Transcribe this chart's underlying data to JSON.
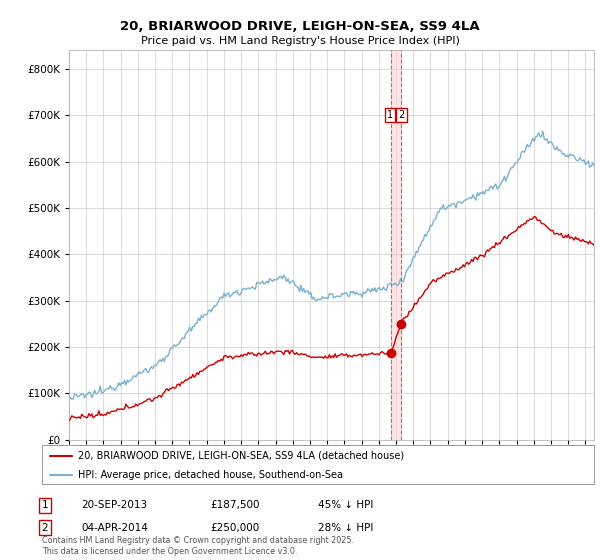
{
  "title": "20, BRIARWOOD DRIVE, LEIGH-ON-SEA, SS9 4LA",
  "subtitle": "Price paid vs. HM Land Registry's House Price Index (HPI)",
  "line1_label": "20, BRIARWOOD DRIVE, LEIGH-ON-SEA, SS9 4LA (detached house)",
  "line2_label": "HPI: Average price, detached house, Southend-on-Sea",
  "line1_color": "#cc0000",
  "line2_color": "#7ab0d4",
  "sale1_x": 2013.72,
  "sale1_y": 187500,
  "sale2_x": 2014.27,
  "sale2_y": 250000,
  "sale1_date": "20-SEP-2013",
  "sale1_price": 187500,
  "sale1_hpi_text": "45% ↓ HPI",
  "sale2_date": "04-APR-2014",
  "sale2_price": 250000,
  "sale2_hpi_text": "28% ↓ HPI",
  "footer": "Contains HM Land Registry data © Crown copyright and database right 2025.\nThis data is licensed under the Open Government Licence v3.0.",
  "xmin": 1995,
  "xmax": 2025.5,
  "ymin": 0,
  "ymax": 840000,
  "yticks": [
    0,
    100000,
    200000,
    300000,
    400000,
    500000,
    600000,
    700000,
    800000
  ],
  "background_color": "#ffffff",
  "grid_color": "#cccccc"
}
